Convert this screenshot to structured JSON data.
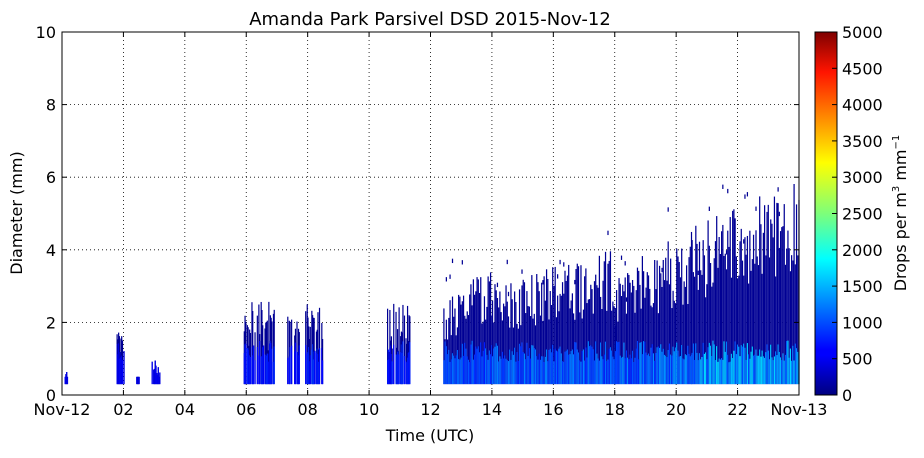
{
  "chart_data": {
    "type": "heatmap",
    "title": "Amanda Park Parsivel DSD 2015-Nov-12",
    "xlabel": "Time (UTC)",
    "ylabel": "Diameter (mm)",
    "xlim": [
      "2015-11-12 00:00",
      "2015-11-13 00:00"
    ],
    "ylim": [
      0,
      10
    ],
    "x_ticks": [
      "Nov-12",
      "02",
      "04",
      "06",
      "08",
      "10",
      "12",
      "14",
      "16",
      "18",
      "20",
      "22",
      "Nov-13"
    ],
    "y_ticks": [
      "0",
      "2",
      "4",
      "6",
      "8",
      "10"
    ],
    "grid": true,
    "colormap": "jet",
    "colorbar": {
      "label": "Drops per m",
      "label_sup1": "3",
      "label_mid": " mm",
      "label_sup2": "−1",
      "range": [
        0,
        5000
      ],
      "ticks": [
        "0",
        "500",
        "1000",
        "1500",
        "2000",
        "2500",
        "3000",
        "3500",
        "4000",
        "4500",
        "5000"
      ]
    },
    "precip_episodes": [
      {
        "start": "00:05",
        "end": "00:10",
        "max_diameter_mm": 0.7,
        "peak_concentration": 200
      },
      {
        "start": "01:45",
        "end": "02:00",
        "max_diameter_mm": 1.8,
        "peak_concentration": 300
      },
      {
        "start": "02:25",
        "end": "02:30",
        "max_diameter_mm": 0.6,
        "peak_concentration": 150
      },
      {
        "start": "02:55",
        "end": "03:10",
        "max_diameter_mm": 1.0,
        "peak_concentration": 250
      },
      {
        "start": "05:55",
        "end": "06:55",
        "max_diameter_mm": 2.6,
        "peak_concentration": 500
      },
      {
        "start": "07:20",
        "end": "07:45",
        "max_diameter_mm": 2.3,
        "peak_concentration": 500
      },
      {
        "start": "07:55",
        "end": "08:30",
        "max_diameter_mm": 2.6,
        "peak_concentration": 550
      },
      {
        "start": "10:35",
        "end": "11:20",
        "max_diameter_mm": 2.6,
        "peak_concentration": 500
      },
      {
        "start": "12:25",
        "end": "14:00",
        "max_diameter_mm": 3.6,
        "peak_concentration": 900
      },
      {
        "start": "14:00",
        "end": "18:00",
        "max_diameter_mm": 4.1,
        "peak_concentration": 1000
      },
      {
        "start": "18:00",
        "end": "20:30",
        "max_diameter_mm": 4.6,
        "peak_concentration": 1100
      },
      {
        "start": "20:30",
        "end": "24:00",
        "max_diameter_mm": 6.2,
        "peak_concentration": 1500
      }
    ]
  }
}
